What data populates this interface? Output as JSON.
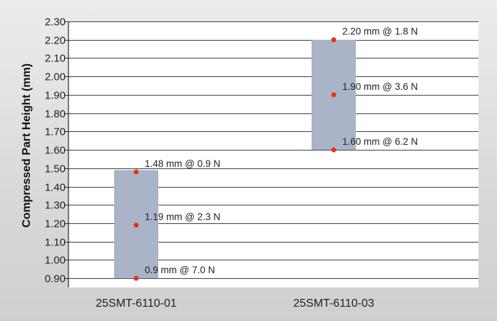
{
  "chart_data": {
    "type": "bar",
    "subtype": "floating-range",
    "ylabel": "Compressed Part Height (mm)",
    "ylim": [
      0.85,
      2.3
    ],
    "y_ticks": [
      "0.90",
      "1.00",
      "1.10",
      "1.20",
      "1.30",
      "1.40",
      "1.50",
      "1.60",
      "1.70",
      "1.80",
      "1.90",
      "2.00",
      "2.10",
      "2.20",
      "2.30"
    ],
    "grid": true,
    "categories": [
      "25SMT-6110-01",
      "25SMT-6110-03"
    ],
    "ranges": [
      {
        "low": 0.9,
        "high": 1.49
      },
      {
        "low": 1.6,
        "high": 2.2
      }
    ],
    "points": [
      {
        "category": 0,
        "y": 1.48,
        "label": "1.48 mm @ 0.9 N"
      },
      {
        "category": 0,
        "y": 1.19,
        "label": "1.19 mm @ 2.3 N"
      },
      {
        "category": 0,
        "y": 0.9,
        "label": "0.9 mm @ 7.0 N"
      },
      {
        "category": 1,
        "y": 2.2,
        "label": "2.20 mm @ 1.8 N"
      },
      {
        "category": 1,
        "y": 1.9,
        "label": "1.90 mm @ 3.6 N"
      },
      {
        "category": 1,
        "y": 1.6,
        "label": "1.60 mm @ 6.2 N"
      }
    ],
    "colors": {
      "bar": "#a9b4c8",
      "point": "#e8321c",
      "plot_background": "#ffffff",
      "grid": "#000000"
    }
  }
}
